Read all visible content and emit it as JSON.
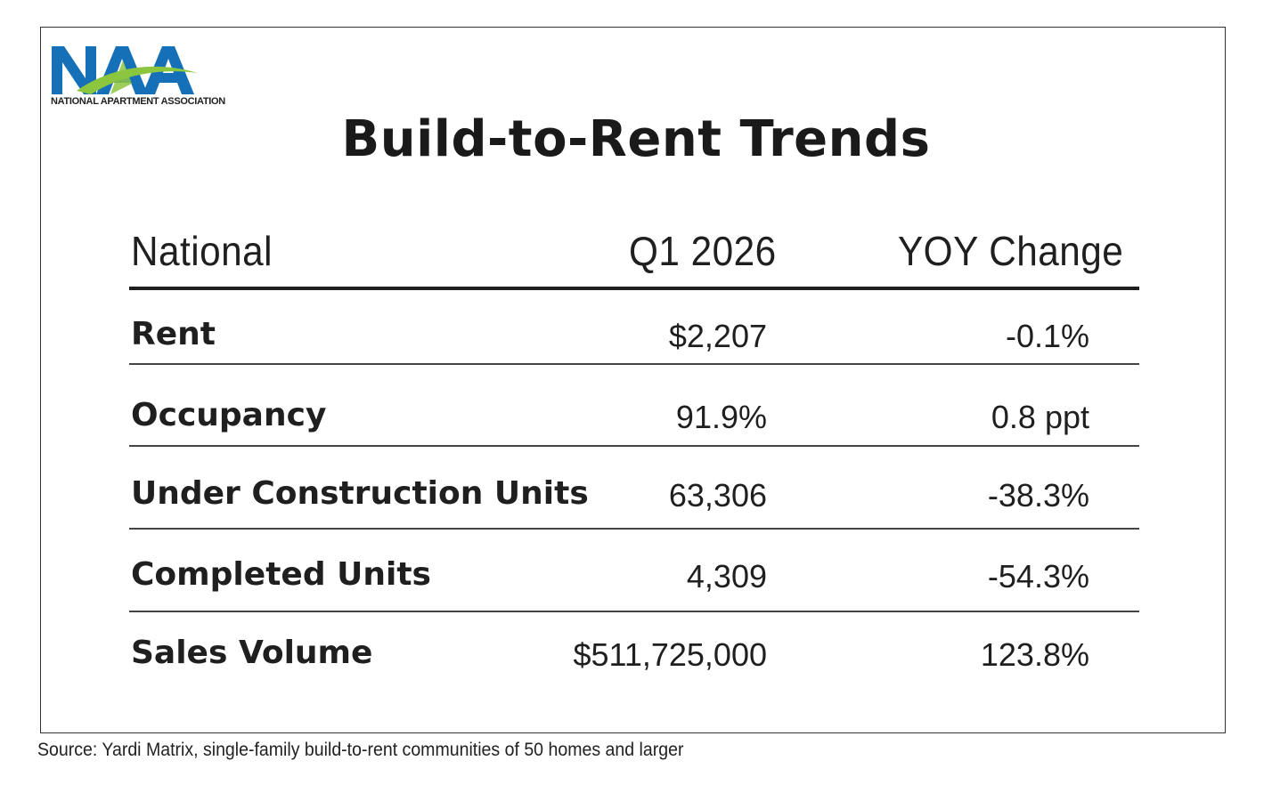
{
  "logo": {
    "letters": "NAA",
    "caption": "NATIONAL APARTMENT ASSOCIATION",
    "colors": {
      "blue": "#1570b8",
      "green": "#8cc63f"
    }
  },
  "chart_data": {
    "type": "table",
    "title": "Build-to-Rent Trends",
    "columns": [
      "National",
      "Q1 2026",
      "YOY Change"
    ],
    "rows": [
      {
        "label": "Rent",
        "value": "$2,207",
        "yoy": "-0.1%"
      },
      {
        "label": "Occupancy",
        "value": "91.9%",
        "yoy": "0.8 ppt"
      },
      {
        "label": "Under Construction Units",
        "value": "63,306",
        "yoy": "-38.3%"
      },
      {
        "label": "Completed Units",
        "value": "4,309",
        "yoy": "-54.3%"
      },
      {
        "label": "Sales Volume",
        "value": "$511,725,000",
        "yoy": "123.8%"
      }
    ],
    "source": "Source: Yardi Matrix, single-family build-to-rent communities of 50 homes and larger"
  }
}
